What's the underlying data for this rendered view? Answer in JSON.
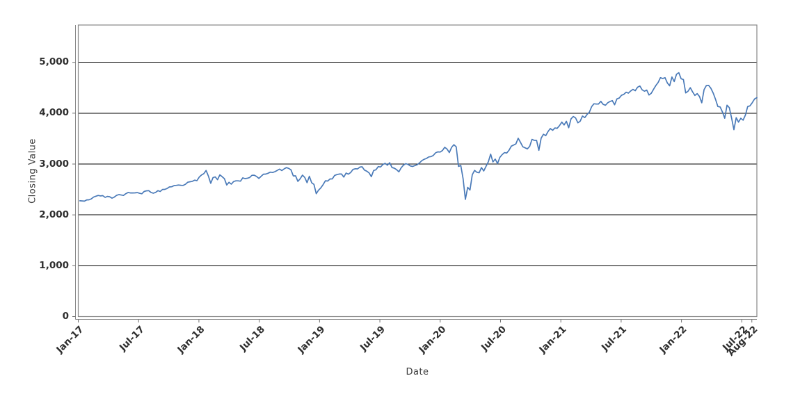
{
  "chart_data": {
    "type": "line",
    "title": "",
    "xlabel": "Date",
    "ylabel": "Closing Value",
    "legend": "none",
    "grid": "horizontal-only",
    "line_color": "#4a7ab8",
    "axis_color": "#878787",
    "gridline_color": "#000000",
    "ylim": [
      0,
      5733
    ],
    "y_tick_values": [
      0,
      1000,
      2000,
      3000,
      4000,
      5000
    ],
    "y_tick_labels": [
      "0",
      "1,000",
      "2,000",
      "3,000",
      "4,000",
      "5,000"
    ],
    "y_gridline_values": [
      1000,
      2000,
      3000,
      4000,
      5000
    ],
    "x_tick_labels": [
      "Jan-17",
      "Jul-17",
      "Jan-18",
      "Jul-18",
      "Jan-19",
      "Jul-19",
      "Jan-20",
      "Jul-20",
      "Jan-21",
      "Jul-21",
      "Jan-22",
      "Jul-22",
      "Aug-22"
    ],
    "x_tick_month_offsets": [
      0,
      6,
      12,
      18,
      24,
      30,
      36,
      42,
      48,
      54,
      60,
      66,
      67
    ],
    "x_axis_span_months": 67.5,
    "x_first_point_month_offset": 0.16,
    "series": [
      {
        "name": "Closing Value",
        "values": [
          2277,
          2275,
          2271,
          2295,
          2297,
          2316,
          2351,
          2367,
          2383,
          2373,
          2378,
          2344,
          2363,
          2356,
          2329,
          2349,
          2384,
          2399,
          2391,
          2382,
          2416,
          2440,
          2432,
          2432,
          2433,
          2438,
          2425,
          2415,
          2460,
          2472,
          2477,
          2441,
          2426,
          2443,
          2477,
          2461,
          2500,
          2502,
          2519,
          2549,
          2553,
          2575,
          2581,
          2588,
          2582,
          2579,
          2602,
          2642,
          2652,
          2660,
          2683,
          2674,
          2743,
          2786,
          2810,
          2873,
          2762,
          2620,
          2732,
          2747,
          2691,
          2787,
          2752,
          2712,
          2588,
          2641,
          2604,
          2656,
          2670,
          2670,
          2663,
          2728,
          2713,
          2721,
          2735,
          2779,
          2780,
          2755,
          2718,
          2760,
          2801,
          2802,
          2818,
          2840,
          2833,
          2850,
          2875,
          2901,
          2872,
          2905,
          2930,
          2914,
          2886,
          2767,
          2768,
          2659,
          2711,
          2781,
          2736,
          2633,
          2760,
          2633,
          2600,
          2417,
          2486,
          2532,
          2596,
          2671,
          2665,
          2706,
          2708,
          2776,
          2793,
          2804,
          2803,
          2743,
          2822,
          2801,
          2834,
          2893,
          2907,
          2905,
          2940,
          2945,
          2881,
          2860,
          2826,
          2752,
          2873,
          2887,
          2950,
          2942,
          2990,
          3014,
          2977,
          3026,
          2932,
          2918,
          2889,
          2847,
          2926,
          2979,
          3007,
          2992,
          2962,
          2952,
          2970,
          2986,
          3023,
          3067,
          3093,
          3110,
          3140,
          3146,
          3169,
          3221,
          3240,
          3235,
          3265,
          3330,
          3295,
          3226,
          3328,
          3380,
          3338,
          2954,
          2972,
          2711,
          2305,
          2541,
          2489,
          2790,
          2875,
          2837,
          2830,
          2930,
          2864,
          2955,
          3044,
          3194,
          3041,
          3098,
          3009,
          3130,
          3185,
          3225,
          3216,
          3271,
          3351,
          3373,
          3397,
          3508,
          3427,
          3341,
          3319,
          3298,
          3348,
          3484,
          3466,
          3465,
          3270,
          3509,
          3585,
          3558,
          3638,
          3699,
          3663,
          3709,
          3703,
          3756,
          3825,
          3768,
          3841,
          3714,
          3887,
          3935,
          3907,
          3811,
          3842,
          3943,
          3913,
          3975,
          4020,
          4129,
          4185,
          4180,
          4181,
          4233,
          4174,
          4156,
          4204,
          4230,
          4247,
          4166,
          4281,
          4298,
          4352,
          4370,
          4412,
          4395,
          4437,
          4468,
          4442,
          4510,
          4535,
          4459,
          4433,
          4455,
          4357,
          4392,
          4471,
          4545,
          4605,
          4698,
          4683,
          4698,
          4595,
          4538,
          4712,
          4621,
          4766,
          4796,
          4677,
          4663,
          4398,
          4432,
          4501,
          4419,
          4349,
          4385,
          4329,
          4204,
          4463,
          4543,
          4546,
          4488,
          4393,
          4272,
          4132,
          4123,
          4024,
          3901,
          4158,
          4109,
          3901,
          3675,
          3912,
          3825,
          3899,
          3863,
          3962,
          4130,
          4145,
          4207,
          4280,
          4305
        ]
      }
    ]
  }
}
